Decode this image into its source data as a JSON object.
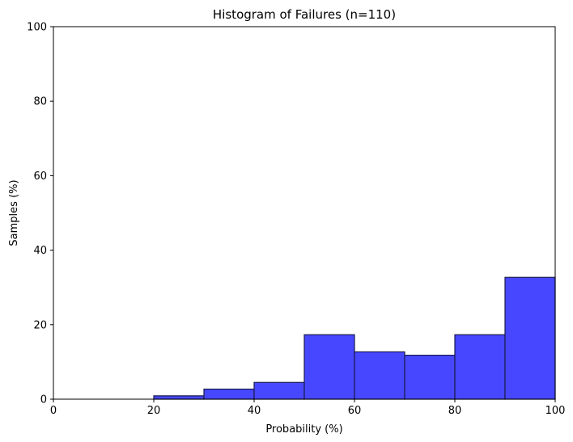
{
  "chart_data": {
    "type": "bar",
    "title": "Histogram of Failures (n=110)",
    "xlabel": "Probability (%)",
    "ylabel": "Samples (%)",
    "xlim": [
      0,
      100
    ],
    "ylim": [
      0,
      100
    ],
    "xticks": [
      0,
      20,
      40,
      60,
      80,
      100
    ],
    "yticks": [
      0,
      20,
      40,
      60,
      80,
      100
    ],
    "bins": [
      {
        "start": 20,
        "end": 30,
        "value": 0.9
      },
      {
        "start": 30,
        "end": 40,
        "value": 2.7
      },
      {
        "start": 40,
        "end": 50,
        "value": 4.5
      },
      {
        "start": 50,
        "end": 60,
        "value": 17.3
      },
      {
        "start": 60,
        "end": 70,
        "value": 12.7
      },
      {
        "start": 70,
        "end": 80,
        "value": 11.8
      },
      {
        "start": 80,
        "end": 90,
        "value": 17.3
      },
      {
        "start": 90,
        "end": 100,
        "value": 32.7
      }
    ],
    "bar_color": "#4747ff",
    "edge_color": "#1a1a4d",
    "grid": false,
    "legend": "none"
  }
}
